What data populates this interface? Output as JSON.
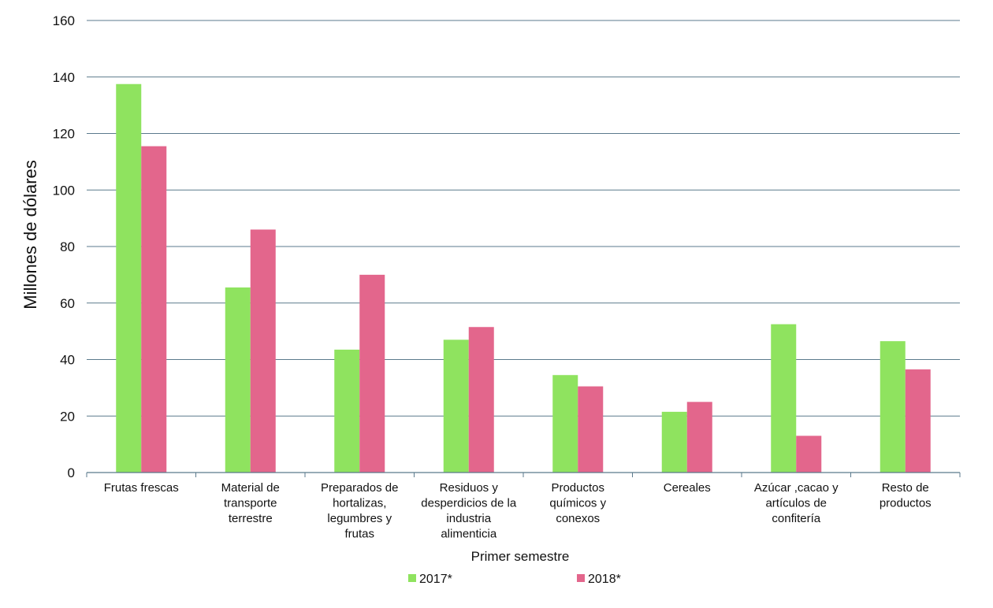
{
  "chart_data": {
    "type": "bar",
    "ylabel": "Millones de dólares",
    "xlabel": "Primer semestre",
    "ylim": [
      0,
      160
    ],
    "yticks": [
      0,
      20,
      40,
      60,
      80,
      100,
      120,
      140,
      160
    ],
    "grid": true,
    "legend_position": "bottom",
    "categories": [
      [
        "Frutas frescas"
      ],
      [
        "Material de",
        "transporte",
        "terrestre"
      ],
      [
        "Preparados de",
        "hortalizas,",
        "legumbres y",
        "frutas"
      ],
      [
        "Residuos y",
        "desperdicios de la",
        "industria",
        "alimenticia"
      ],
      [
        "Productos",
        "químicos y",
        "conexos"
      ],
      [
        "Cereales"
      ],
      [
        "Azúcar ,cacao y",
        "artículos de",
        "confitería"
      ],
      [
        "Resto de",
        "productos"
      ]
    ],
    "series": [
      {
        "name": "2017*",
        "color": "#8fe35f",
        "values": [
          137.5,
          65.5,
          43.5,
          47,
          34.5,
          21.5,
          52.5,
          46.5
        ]
      },
      {
        "name": "2018*",
        "color": "#e3668c",
        "values": [
          115.5,
          86,
          70,
          51.5,
          30.5,
          25,
          13,
          36.5
        ]
      }
    ]
  }
}
